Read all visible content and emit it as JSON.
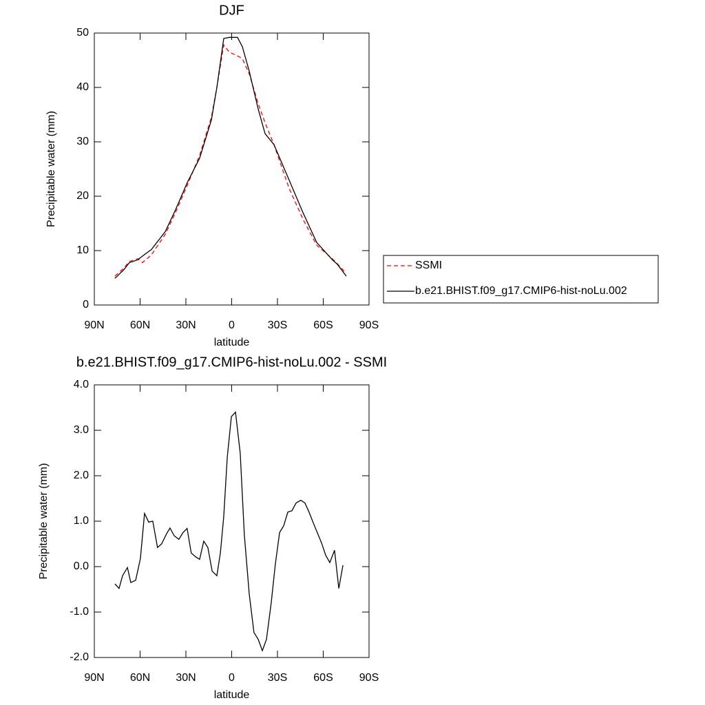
{
  "chart_data": [
    {
      "type": "line",
      "title": "DJF",
      "xlabel": "latitude",
      "ylabel": "Precipitable water (mm)",
      "x": [
        76.5,
        70.6,
        67,
        61.6,
        58.4,
        52.6,
        43.5,
        36.8,
        29.1,
        21,
        13.3,
        9.7,
        5.2,
        1.6,
        -3.8,
        -7,
        -11.5,
        -17.4,
        -21.9,
        -27.7,
        -37.6,
        -46.7,
        -55.7,
        -66,
        -69.2,
        -75.1
      ],
      "series": [
        {
          "name": "SSMI",
          "color": "#ff0000",
          "dashed": true,
          "values": [
            5.3,
            6.8,
            8.0,
            8.5,
            7.8,
            9.2,
            13,
            17,
            22,
            27.5,
            34.5,
            40,
            47.8,
            46.5,
            45.8,
            45.3,
            42.5,
            37,
            33.5,
            29.5,
            21.5,
            15.8,
            11,
            8.5,
            7.6,
            5.8
          ]
        },
        {
          "name": "b.e21.BHIST.f09_g17.CMIP6-hist-noLu.002",
          "color": "#000000",
          "dashed": false,
          "values": [
            4.9,
            6.5,
            7.8,
            8.3,
            9.0,
            10.2,
            13.5,
            17.5,
            22.5,
            27,
            34,
            40,
            49,
            49.2,
            49.2,
            47.5,
            43,
            36,
            31.5,
            29.5,
            23,
            17,
            11.5,
            8.3,
            7.5,
            5.3
          ]
        }
      ],
      "xlim": [
        90,
        -90
      ],
      "xticks": [
        {
          "value": 90,
          "label": "90N"
        },
        {
          "value": 60,
          "label": "60N"
        },
        {
          "value": 30,
          "label": "30N"
        },
        0,
        {
          "value": -30,
          "label": "30S"
        },
        {
          "value": -60,
          "label": "60S"
        },
        {
          "value": -90,
          "label": "90S"
        }
      ],
      "ylim": [
        0,
        50
      ],
      "yticks": [
        0,
        10,
        20,
        30,
        40,
        50
      ],
      "legend": "right"
    },
    {
      "type": "line",
      "title": "b.e21.BHIST.f09_g17.CMIP6-hist-noLu.002 - SSMI",
      "xlabel": "latitude",
      "ylabel": "Precipitable water (mm)",
      "x": [
        76.5,
        73.8,
        71.5,
        68.3,
        66.1,
        62.9,
        59.8,
        57.1,
        54.4,
        51.7,
        48.6,
        45.9,
        42.7,
        40.4,
        37.7,
        34.6,
        31.9,
        29.2,
        26.5,
        23.8,
        21.0,
        18.3,
        15.6,
        12.8,
        9.7,
        7.4,
        5.2,
        2.9,
        0.2,
        -2.5,
        -5.6,
        -8.3,
        -11.5,
        -14.6,
        -17.4,
        -20.1,
        -22.8,
        -25.9,
        -28.6,
        -31.4,
        -34.1,
        -36.8,
        -39.5,
        -42.2,
        -45.3,
        -48.0,
        -50.7,
        -53.5,
        -56.2,
        -58.9,
        -61.6,
        -64.3,
        -67.4,
        -70.2,
        -72.9
      ],
      "series": [
        {
          "color": "#000000",
          "dashed": false,
          "values": [
            -0.38,
            -0.48,
            -0.2,
            -0.02,
            -0.35,
            -0.3,
            0.18,
            1.17,
            0.98,
            1.0,
            0.42,
            0.5,
            0.72,
            0.85,
            0.68,
            0.6,
            0.75,
            0.84,
            0.3,
            0.22,
            0.16,
            0.56,
            0.42,
            -0.1,
            -0.2,
            0.3,
            1.1,
            2.4,
            3.3,
            3.4,
            2.5,
            0.7,
            -0.6,
            -1.45,
            -1.6,
            -1.85,
            -1.6,
            -0.8,
            0.05,
            0.75,
            0.9,
            1.2,
            1.23,
            1.4,
            1.46,
            1.4,
            1.2,
            0.96,
            0.74,
            0.52,
            0.25,
            0.09,
            0.36,
            -0.48,
            0.03
          ]
        }
      ],
      "xlim": [
        90,
        -90
      ],
      "xticks": [
        {
          "value": 90,
          "label": "90N"
        },
        {
          "value": 60,
          "label": "60N"
        },
        {
          "value": 30,
          "label": "30N"
        },
        0,
        {
          "value": -30,
          "label": "30S"
        },
        {
          "value": -60,
          "label": "60S"
        },
        {
          "value": -90,
          "label": "90S"
        }
      ],
      "ylim": [
        -2,
        4
      ],
      "yticks": [
        {
          "value": -2,
          "label": "-2.0"
        },
        {
          "value": -1,
          "label": "-1.0"
        },
        {
          "value": 0,
          "label": "0.0"
        },
        {
          "value": 1,
          "label": "1.0"
        },
        {
          "value": 2,
          "label": "2.0"
        },
        {
          "value": 3,
          "label": "3.0"
        },
        {
          "value": 4,
          "label": "4.0"
        }
      ]
    }
  ]
}
